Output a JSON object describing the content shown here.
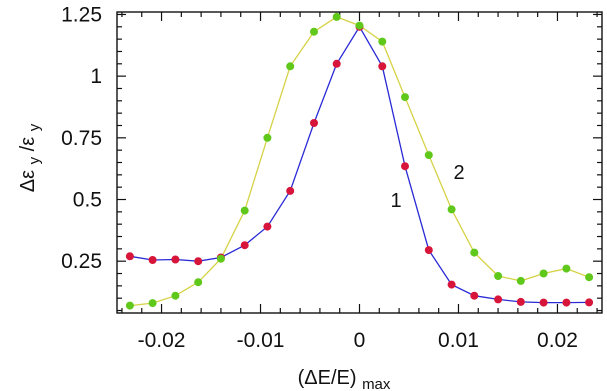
{
  "chart_data": {
    "type": "line",
    "xlabel": "(ΔE/E)",
    "xlabel_sub": "max",
    "ylabel": "Δε",
    "ylabel_sub1": "y",
    "ylabel_mid": "/ε",
    "ylabel_sub2": "y",
    "xlim": [
      -0.0245,
      0.0245
    ],
    "ylim": [
      0.04,
      1.26
    ],
    "xticks": [
      -0.02,
      -0.01,
      0,
      0.01,
      0.02
    ],
    "xtick_labels": [
      "-0.02",
      "-0.01",
      "0",
      "0.01",
      "0.02"
    ],
    "yticks": [
      0.25,
      0.5,
      0.75,
      1.0,
      1.25
    ],
    "ytick_labels": [
      "0.25",
      "0.5",
      "0.75",
      "1",
      "1.25"
    ],
    "grid": false,
    "series": [
      {
        "name": "1",
        "line_color": "#2a2ad6",
        "marker_color": "#d7153a",
        "x": [
          -0.0232,
          -0.0209,
          -0.0186,
          -0.0163,
          -0.014,
          -0.0116,
          -0.0093,
          -0.007,
          -0.0046,
          -0.0023,
          0.0,
          0.0023,
          0.0046,
          0.007,
          0.0093,
          0.0116,
          0.014,
          0.0163,
          0.0186,
          0.0209,
          0.0232
        ],
        "values": [
          0.27,
          0.255,
          0.257,
          0.25,
          0.265,
          0.315,
          0.39,
          0.535,
          0.81,
          1.05,
          1.2,
          1.04,
          0.635,
          0.295,
          0.155,
          0.11,
          0.095,
          0.085,
          0.082,
          0.082,
          0.083
        ]
      },
      {
        "name": "2",
        "line_color": "#d6d246",
        "marker_color": "#5fc81b",
        "x": [
          -0.0232,
          -0.0209,
          -0.0186,
          -0.0163,
          -0.014,
          -0.0116,
          -0.0093,
          -0.007,
          -0.0046,
          -0.0023,
          0.0,
          0.0023,
          0.0046,
          0.007,
          0.0093,
          0.0116,
          0.014,
          0.0163,
          0.0186,
          0.0209,
          0.0232
        ],
        "values": [
          0.07,
          0.08,
          0.11,
          0.165,
          0.26,
          0.455,
          0.75,
          1.04,
          1.18,
          1.24,
          1.205,
          1.14,
          0.915,
          0.68,
          0.46,
          0.285,
          0.19,
          0.17,
          0.2,
          0.22,
          0.185
        ]
      }
    ]
  }
}
